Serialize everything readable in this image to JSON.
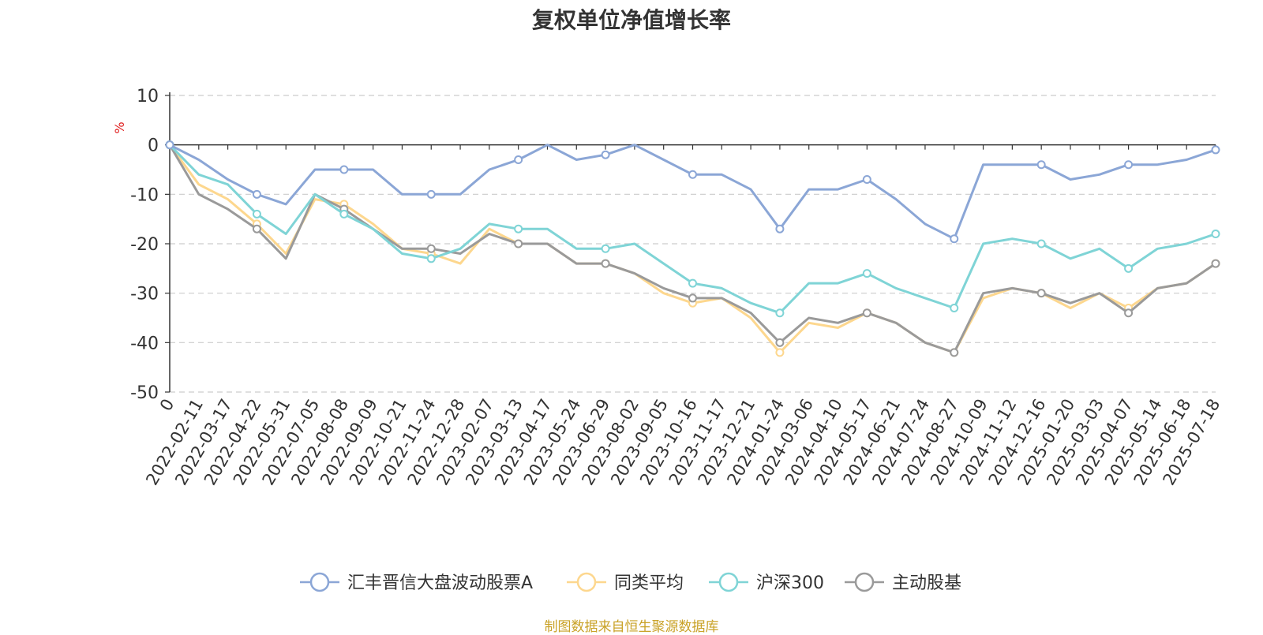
{
  "title": "复权单位净值增长率",
  "source_note": "制图数据来自恒生聚源数据库",
  "chart_data": {
    "type": "line",
    "title": "复权单位净值增长率",
    "ylabel": "%",
    "ylim": [
      -50,
      10
    ],
    "yticks": [
      "10",
      "0",
      "-10",
      "-20",
      "-30",
      "-40",
      "-50"
    ],
    "grid": true,
    "legend_position": "bottom",
    "categories": [
      "0",
      "2022-02-11",
      "2022-03-17",
      "2022-04-22",
      "2022-05-31",
      "2022-07-05",
      "2022-08-08",
      "2022-09-09",
      "2022-10-21",
      "2022-11-24",
      "2022-12-28",
      "2023-02-07",
      "2023-03-13",
      "2023-04-17",
      "2023-05-24",
      "2023-06-29",
      "2023-08-02",
      "2023-09-05",
      "2023-10-16",
      "2023-11-17",
      "2023-12-21",
      "2024-01-24",
      "2024-03-06",
      "2024-04-10",
      "2024-05-17",
      "2024-06-21",
      "2024-07-24",
      "2024-08-27",
      "2024-10-09",
      "2024-11-12",
      "2024-12-16",
      "2025-01-20",
      "2025-03-03",
      "2025-04-07",
      "2025-05-14",
      "2025-06-18",
      "2025-07-18"
    ],
    "series": [
      {
        "name": "汇丰晋信大盘波动股票A",
        "color": "#8ba6d6",
        "values": [
          0,
          -3,
          -7,
          -10,
          -12,
          -5,
          -5,
          -5,
          -10,
          -10,
          -10,
          -5,
          -3,
          0,
          -3,
          -2,
          0,
          -3,
          -6,
          -6,
          -9,
          -17,
          -9,
          -9,
          -7,
          -11,
          -16,
          -19,
          -4,
          -4,
          -4,
          -7,
          -6,
          -4,
          -4,
          -3,
          -1
        ]
      },
      {
        "name": "同类平均",
        "color": "#fdd78e",
        "values": [
          0,
          -8,
          -11,
          -16,
          -22,
          -11,
          -12,
          -16,
          -21,
          -22,
          -24,
          -17,
          -20,
          -20,
          -24,
          -24,
          -26,
          -30,
          -32,
          -31,
          -35,
          -42,
          -36,
          -37,
          -34,
          -36,
          -40,
          -42,
          -31,
          -29,
          -30,
          -33,
          -30,
          -33,
          -29,
          -28,
          -24
        ]
      },
      {
        "name": "沪深300",
        "color": "#7fd4d6",
        "values": [
          0,
          -6,
          -8,
          -14,
          -18,
          -10,
          -14,
          -17,
          -22,
          -23,
          -21,
          -16,
          -17,
          -17,
          -21,
          -21,
          -20,
          -24,
          -28,
          -29,
          -32,
          -34,
          -28,
          -28,
          -26,
          -29,
          -31,
          -33,
          -20,
          -19,
          -20,
          -23,
          -21,
          -25,
          -21,
          -20,
          -18
        ]
      },
      {
        "name": "主动股基",
        "color": "#9a9a9a",
        "values": [
          0,
          -10,
          -13,
          -17,
          -23,
          -10,
          -13,
          -17,
          -21,
          -21,
          -22,
          -18,
          -20,
          -20,
          -24,
          -24,
          -26,
          -29,
          -31,
          -31,
          -34,
          -40,
          -35,
          -36,
          -34,
          -36,
          -40,
          -42,
          -30,
          -29,
          -30,
          -32,
          -30,
          -34,
          -29,
          -28,
          -24
        ]
      }
    ]
  }
}
